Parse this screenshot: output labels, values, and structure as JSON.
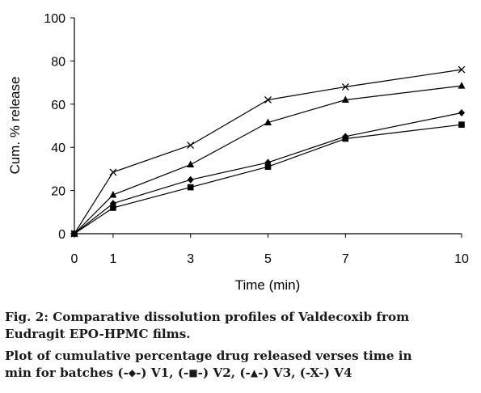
{
  "chart_data": {
    "type": "line",
    "xlabel": "Time (min)",
    "ylabel": "Cum. % release",
    "x_ticks": [
      "0",
      "1",
      "3",
      "5",
      "7",
      "10"
    ],
    "y_ticks": [
      "0",
      "20",
      "40",
      "60",
      "80",
      "100"
    ],
    "ylim": [
      0,
      100
    ],
    "grid": false,
    "legend": "none",
    "x": [
      0,
      1,
      3,
      5,
      7,
      10
    ],
    "series": [
      {
        "name": "V1",
        "marker": "diamond",
        "values": [
          0,
          14,
          25,
          33,
          45,
          56
        ]
      },
      {
        "name": "V2",
        "marker": "square",
        "values": [
          0,
          12,
          21.5,
          31,
          44,
          50.5
        ]
      },
      {
        "name": "V3",
        "marker": "triangle",
        "values": [
          0,
          18,
          32,
          51.5,
          62,
          68.5
        ]
      },
      {
        "name": "V4",
        "marker": "x",
        "values": [
          0,
          28.5,
          41,
          62,
          68,
          76
        ]
      }
    ],
    "line_color": "#000000"
  },
  "caption": {
    "line1": "Fig. 2: Comparative dissolution profiles of Valdecoxib from",
    "line2": "Eudragit EPO-HPMC films.",
    "line3": "Plot of cumulative percentage drug released verses time in",
    "line4_prefix": "min for batches (-",
    "sym_v1": "◆",
    "sep_v1": "-) V1, (-",
    "sym_v2": "■",
    "sep_v2": "-) V2, (-",
    "sym_v3": "▲",
    "sep_v3": "-) V3, (-X-) V4"
  }
}
